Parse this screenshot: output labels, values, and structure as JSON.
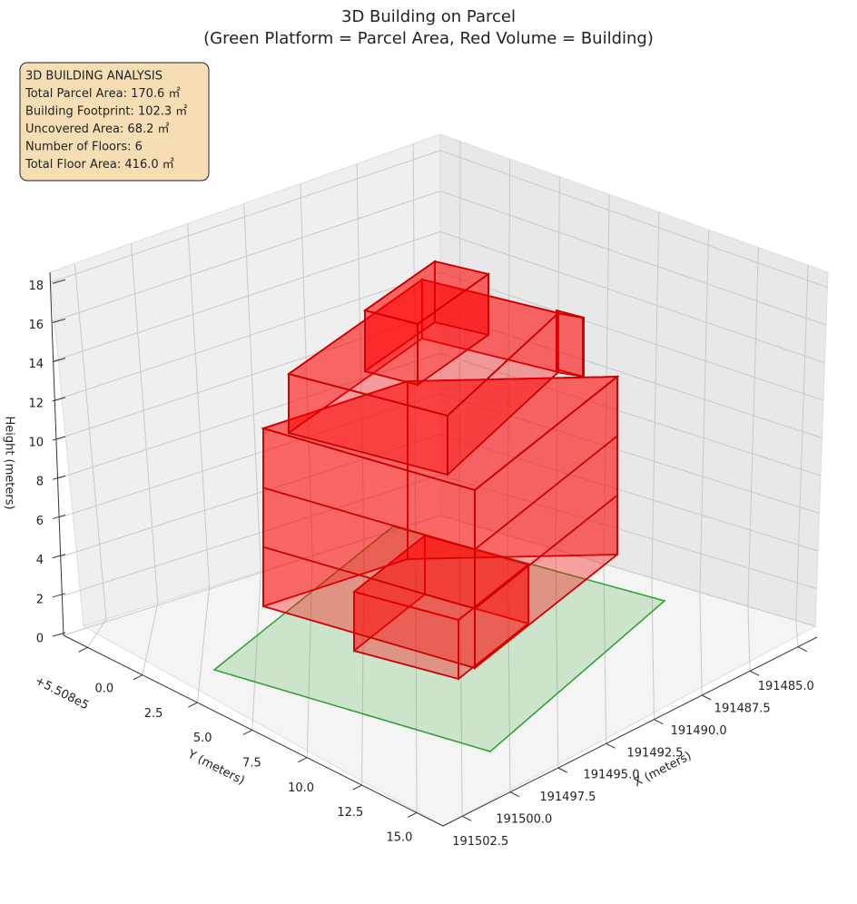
{
  "chart_data": {
    "type": "bar3d",
    "title": "3D Building on Parcel",
    "subtitle": "(Green Platform = Parcel Area, Red Volume = Building)",
    "annotation": [
      "3D BUILDING ANALYSIS",
      "Total Parcel Area: 170.6 ㎡",
      "Building Footprint: 102.3 ㎡",
      "Uncovered Area: 68.2 ㎡",
      "Number of Floors: 6",
      "Total Floor Area: 416.0 ㎡"
    ],
    "xlabel": "X (meters)",
    "ylabel": "Y (meters)",
    "zlabel": "Height (meters)",
    "y_offset_label": "+5.508e5",
    "xlim": [
      191484,
      191503.5
    ],
    "xticks": [
      {
        "value": 191485,
        "label": "191485.0"
      },
      {
        "value": 191487.5,
        "label": "191487.5"
      },
      {
        "value": 191490,
        "label": "191490.0"
      },
      {
        "value": 191492.5,
        "label": "191492.5"
      },
      {
        "value": 191495,
        "label": "191495.0"
      },
      {
        "value": 191497.5,
        "label": "191497.5"
      },
      {
        "value": 191500,
        "label": "191500.0"
      },
      {
        "value": 191502.5,
        "label": "191502.5"
      }
    ],
    "ylim": [
      -1.1,
      16.2
    ],
    "yticks": [
      {
        "value": 0,
        "label": "0.0"
      },
      2.5,
      {
        "value": 5,
        "label": "5.0"
      },
      7.5,
      {
        "value": 10,
        "label": "10.0"
      },
      12.5,
      {
        "value": 15,
        "label": "15.0"
      }
    ],
    "zlim": [
      0,
      18.8
    ],
    "zticks": [
      0,
      2,
      4,
      6,
      8,
      10,
      12,
      14,
      16,
      18
    ],
    "platform_color": "#2ca02c",
    "building_color": "#ff0000",
    "grid": true
  }
}
